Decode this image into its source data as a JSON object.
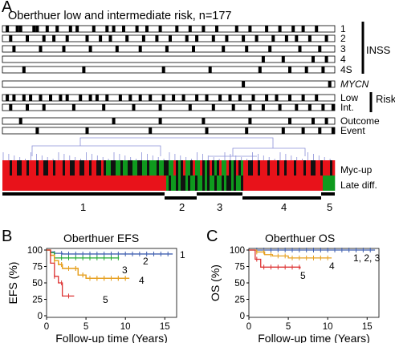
{
  "panelA": {
    "letter": "A",
    "title": "Oberthuer low and intermediate risk, n=177",
    "tracks": [
      {
        "label": "1",
        "marks": [
          0.01,
          0.04,
          0.05,
          0.09,
          0.1,
          0.13,
          0.16,
          0.2,
          0.22,
          0.27,
          0.31,
          0.33,
          0.36,
          0.4,
          0.43,
          0.47,
          0.52,
          0.56,
          0.6,
          0.64,
          0.7,
          0.74,
          0.79,
          0.83,
          0.87,
          0.9,
          0.94
        ]
      },
      {
        "label": "2",
        "marks": [
          0.02,
          0.07,
          0.12,
          0.15,
          0.19,
          0.25,
          0.29,
          0.32,
          0.37,
          0.42,
          0.46,
          0.5,
          0.55,
          0.58,
          0.63,
          0.67,
          0.72,
          0.76,
          0.81,
          0.85,
          0.88,
          0.92,
          0.97
        ]
      },
      {
        "label": "3",
        "marks": [
          0.03,
          0.11,
          0.18,
          0.26,
          0.34,
          0.41,
          0.49,
          0.57,
          0.66,
          0.73,
          0.8,
          0.89,
          0.95
        ]
      },
      {
        "label": "4",
        "marks": [
          0.78,
          0.84,
          0.93,
          0.97
        ]
      },
      {
        "label": "4S",
        "marks": [
          0.06,
          0.24,
          0.48,
          0.62,
          0.77,
          0.86,
          0.91,
          0.96
        ]
      },
      {
        "label": "MYCN",
        "italic": true,
        "marks": [
          0.72,
          0.98
        ]
      },
      {
        "label": "Low",
        "marks": [
          0.01,
          0.03,
          0.06,
          0.08,
          0.11,
          0.14,
          0.17,
          0.19,
          0.23,
          0.26,
          0.28,
          0.31,
          0.35,
          0.38,
          0.41,
          0.44,
          0.48,
          0.51,
          0.54,
          0.58,
          0.61,
          0.65,
          0.68,
          0.71,
          0.75,
          0.79,
          0.82,
          0.86,
          0.9,
          0.94
        ]
      },
      {
        "label": "Int.",
        "marks": [
          0.02,
          0.07,
          0.12,
          0.21,
          0.3,
          0.39,
          0.47,
          0.56,
          0.63,
          0.69,
          0.74,
          0.78,
          0.83,
          0.88,
          0.92,
          0.96,
          0.99
        ]
      },
      {
        "label": "Outcome",
        "marks": [
          0.05,
          0.33,
          0.47,
          0.6,
          0.74,
          0.86,
          0.93,
          0.97
        ]
      },
      {
        "label": "Event",
        "marks": [
          0.1,
          0.25,
          0.44,
          0.61,
          0.73,
          0.84,
          0.9,
          0.95,
          0.99
        ]
      }
    ],
    "groups": [
      {
        "label": "INSS"
      },
      {
        "label": "Risk"
      }
    ],
    "heatmap": {
      "rows": [
        "Myc-up",
        "Late diff."
      ],
      "colors": {
        "high": "#e8121a",
        "low": "#0f9a1e",
        "mid": "#111111"
      }
    },
    "clusters": [
      "1",
      "2",
      "3",
      "4",
      "5"
    ]
  },
  "panelB": {
    "letter": "B",
    "title": "Oberthuer EFS",
    "ylabel": "EFS (%)",
    "xlabel": "Follow-up time (Years)",
    "xticks": [
      "0",
      "5",
      "10",
      "15"
    ],
    "yticks": [
      "0",
      "25",
      "50",
      "75",
      "100"
    ],
    "chart_data": {
      "type": "line",
      "xlim": [
        0,
        16.5
      ],
      "ylim": [
        0,
        100
      ],
      "series": [
        {
          "name": "1",
          "color": "#4060b0",
          "points": [
            [
              0,
              100
            ],
            [
              0.5,
              97
            ],
            [
              1,
              95
            ],
            [
              2,
              94
            ],
            [
              16,
              94
            ]
          ]
        },
        {
          "name": "2",
          "color": "#22aa33",
          "points": [
            [
              0,
              100
            ],
            [
              0.5,
              96
            ],
            [
              1,
              88
            ],
            [
              9.2,
              88
            ]
          ]
        },
        {
          "name": "3",
          "color": "#e6a020",
          "points": [
            [
              0,
              100
            ],
            [
              0.5,
              92
            ],
            [
              1,
              84
            ],
            [
              1.5,
              78
            ],
            [
              2,
              72
            ],
            [
              3,
              72
            ],
            [
              4,
              62
            ],
            [
              5,
              57
            ],
            [
              10.5,
              57
            ]
          ]
        },
        {
          "name": "4",
          "color": "#e6a020",
          "points": [
            [
              0,
              100
            ],
            [
              0.5,
              92
            ],
            [
              1,
              84
            ],
            [
              1.5,
              78
            ],
            [
              2,
              72
            ],
            [
              3,
              72
            ],
            [
              4,
              62
            ],
            [
              5,
              57
            ],
            [
              10.5,
              57
            ]
          ]
        },
        {
          "name": "5",
          "color": "#dd3333",
          "points": [
            [
              0,
              100
            ],
            [
              0.5,
              80
            ],
            [
              1,
              60
            ],
            [
              1.5,
              50
            ],
            [
              2,
              30
            ],
            [
              3.5,
              30
            ]
          ]
        }
      ],
      "labels": [
        "1",
        "2",
        "3",
        "4",
        "5"
      ]
    }
  },
  "panelC": {
    "letter": "C",
    "title": "Oberthuer OS",
    "ylabel": "OS (%)",
    "xlabel": "Follow-up time (Years)",
    "xticks": [
      "0",
      "5",
      "10",
      "15"
    ],
    "yticks": [
      "0",
      "25",
      "50",
      "75",
      "100"
    ],
    "chart_data": {
      "type": "line",
      "xlim": [
        0,
        16.5
      ],
      "ylim": [
        0,
        100
      ],
      "series": [
        {
          "name": "1, 2, 3",
          "color": "#4060b0",
          "points": [
            [
              0,
              100
            ],
            [
              16,
              100
            ]
          ]
        },
        {
          "name": "4",
          "color": "#e6a020",
          "points": [
            [
              0,
              100
            ],
            [
              1,
              97
            ],
            [
              2,
              93
            ],
            [
              3,
              91
            ],
            [
              5,
              88
            ],
            [
              6,
              88
            ],
            [
              7,
              88
            ],
            [
              10.5,
              88
            ]
          ]
        },
        {
          "name": "5",
          "color": "#dd3333",
          "points": [
            [
              0,
              100
            ],
            [
              0.8,
              86
            ],
            [
              1.5,
              74
            ],
            [
              6.5,
              72
            ]
          ]
        }
      ],
      "labels": [
        "1, 2, 3",
        "4",
        "5"
      ]
    }
  }
}
